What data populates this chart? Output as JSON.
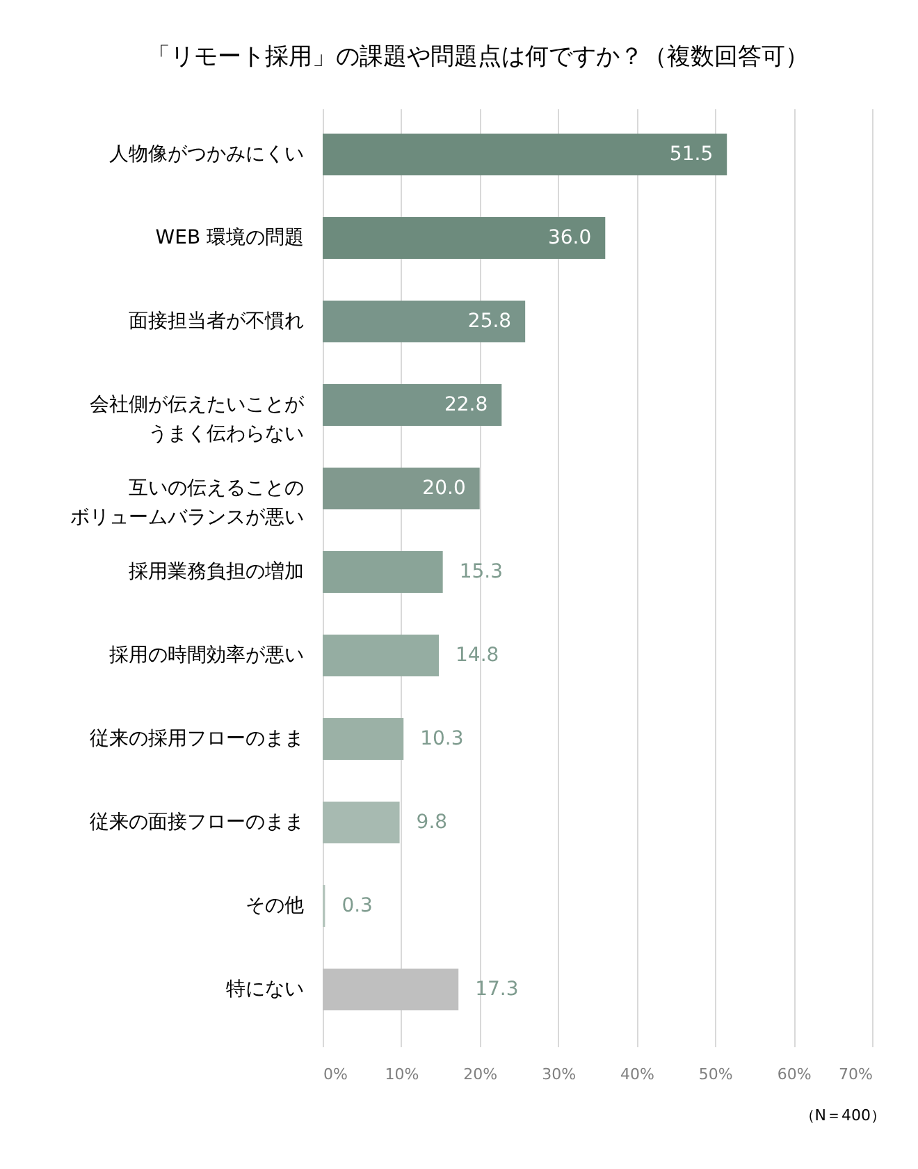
{
  "chart_data": {
    "type": "bar",
    "orientation": "horizontal",
    "title": "「リモート採用」の課題や問題点は何ですか？（複数回答可）",
    "categories": [
      "人物像がつかみにくい",
      "WEB 環境の問題",
      "面接担当者が不慣れ",
      "会社側が伝えたいことがうまく伝わらない",
      "互いの伝えることのボリュームバランスが悪い",
      "採用業務負担の増加",
      "採用の時間効率が悪い",
      "従来の採用フローのまま",
      "従来の面接フローのまま",
      "その他",
      "特にない"
    ],
    "values": [
      51.5,
      36.0,
      25.8,
      22.8,
      20.0,
      15.3,
      14.8,
      10.3,
      9.8,
      0.3,
      17.3
    ],
    "value_labels": [
      "51.5",
      "36.0",
      "25.8",
      "22.8",
      "20.0",
      "15.3",
      "14.8",
      "10.3",
      "9.8",
      "0.3",
      "17.3"
    ],
    "colors": [
      "#6d8b7d",
      "#6d8b7d",
      "#79958a",
      "#79958a",
      "#81998e",
      "#8aa498",
      "#95ada2",
      "#9bb1a6",
      "#a7bab1",
      "#b3c4bb",
      "#bfbfbf"
    ],
    "xlim": [
      0,
      70
    ],
    "xticks": [
      {
        "value": 0,
        "label": "0%"
      },
      {
        "value": 10,
        "label": "10%"
      },
      {
        "value": 20,
        "label": "20%"
      },
      {
        "value": 30,
        "label": "30%"
      },
      {
        "value": 40,
        "label": "40%"
      },
      {
        "value": 50,
        "label": "50%"
      },
      {
        "value": 60,
        "label": "60%"
      },
      {
        "value": 70,
        "label": "70%"
      }
    ],
    "grid": "x",
    "annotations": [
      "（N＝400）"
    ]
  }
}
